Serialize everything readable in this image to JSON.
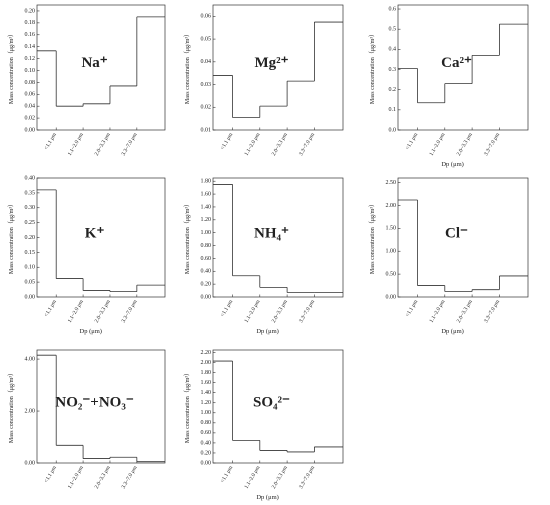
{
  "chart_data": [
    {
      "type": "step",
      "annotation": "Na⁺",
      "ylabel": "Mass concentration（μg/m³）",
      "categories": [
        "<1.1 μm",
        "1.1~2.0 μm",
        "2.0~3.3 μm",
        "3.3~7.0 μm",
        null
      ],
      "values": [
        0.133,
        0.04,
        0.044,
        0.074,
        0.19
      ],
      "color": "#333333",
      "ylim": [
        0,
        0.21
      ],
      "yticks": [
        {
          "value": 0,
          "label": "0.00"
        },
        0.02,
        0.04,
        0.06,
        0.08,
        {
          "value": 0.1,
          "label": "0.10"
        },
        0.12,
        0.14,
        0.16,
        0.18,
        {
          "value": 0.2,
          "label": "0.20"
        }
      ]
    },
    {
      "type": "step",
      "annotation": "Mg²⁺",
      "ylabel": "Mass concentration（μg/m³）",
      "categories": [
        "<1.1 μm",
        "1.1~2.0 μm",
        "2.0~3.3 μm",
        "3.3~7.0 μm",
        null
      ],
      "values": [
        0.034,
        0.0155,
        0.0205,
        0.0315,
        0.0575
      ],
      "color": "#333333",
      "ylim": [
        0.01,
        0.065
      ],
      "yticks": [
        0.01,
        0.02,
        0.03,
        0.04,
        0.05,
        0.06
      ]
    },
    {
      "type": "step",
      "annotation": "Ca²⁺",
      "ylabel": "Mass concentration（μg/m³）",
      "xlabel": "Dp (μm)",
      "categories": [
        "<1.1 μm",
        "1.1~2.0 μm",
        "2.0~3.3 μm",
        "3.3~7.0 μm",
        null
      ],
      "values": [
        0.305,
        0.135,
        0.23,
        0.37,
        0.525
      ],
      "color": "#333333",
      "ylim": [
        0,
        0.62
      ],
      "yticks": [
        {
          "value": 0,
          "label": "0.0"
        },
        0.1,
        0.2,
        0.3,
        0.4,
        0.5,
        0.6
      ]
    },
    {
      "type": "step",
      "annotation": "K⁺",
      "ylabel": "Mass concentration（μg/m³）",
      "xlabel": "Dp (μm)",
      "categories": [
        "<1.1 μm",
        "1.1~2.0 μm",
        "2.0~3.3 μm",
        "3.3~7.0 μm",
        null
      ],
      "values": [
        0.36,
        0.062,
        0.022,
        0.018,
        0.04
      ],
      "color": "#333333",
      "ylim": [
        0,
        0.4
      ],
      "yticks": [
        {
          "value": 0,
          "label": "0.00"
        },
        0.05,
        {
          "value": 0.1,
          "label": "0.10"
        },
        0.15,
        {
          "value": 0.2,
          "label": "0.20"
        },
        0.25,
        {
          "value": 0.3,
          "label": "0.30"
        },
        0.35,
        {
          "value": 0.4,
          "label": "0.40"
        }
      ]
    },
    {
      "type": "step",
      "annotation": "NH₄⁺",
      "ylabel": "Mass concentration（μg/m³）",
      "xlabel": "Dp (μm)",
      "categories": [
        "<1.1 μm",
        "1.1~2.0 μm",
        "2.0~3.3 μm",
        "3.3~7.0 μm",
        null
      ],
      "values": [
        1.75,
        0.33,
        0.15,
        0.07,
        0.07
      ],
      "color": "#333333",
      "ylim": [
        0,
        1.85
      ],
      "yticks": [
        {
          "value": 0,
          "label": "0.00"
        },
        {
          "value": 0.2,
          "label": "0.20"
        },
        {
          "value": 0.4,
          "label": "0.40"
        },
        {
          "value": 0.6,
          "label": "0.60"
        },
        {
          "value": 0.8,
          "label": "0.80"
        },
        {
          "value": 1,
          "label": "1.00"
        },
        {
          "value": 1.2,
          "label": "1.20"
        },
        {
          "value": 1.4,
          "label": "1.40"
        },
        {
          "value": 1.6,
          "label": "1.60"
        },
        {
          "value": 1.8,
          "label": "1.80"
        }
      ]
    },
    {
      "type": "step",
      "annotation": "Cl⁻",
      "ylabel": "Mass concentration（μg/m³）",
      "xlabel": "Dp (μm)",
      "categories": [
        "<1.1 μm",
        "1.1~2.0 μm",
        "2.0~3.3 μm",
        "3.3~7.0 μm",
        null
      ],
      "values": [
        2.12,
        0.25,
        0.12,
        0.16,
        0.46
      ],
      "color": "#333333",
      "ylim": [
        0,
        2.6
      ],
      "yticks": [
        {
          "value": 0,
          "label": "0.00"
        },
        {
          "value": 0.5,
          "label": "0.50"
        },
        {
          "value": 1,
          "label": "1.00"
        },
        {
          "value": 1.5,
          "label": "1.50"
        },
        {
          "value": 2,
          "label": "2.00"
        },
        {
          "value": 2.5,
          "label": "2.50"
        }
      ]
    },
    {
      "type": "step",
      "annotation": "NO₂⁻+NO₃⁻",
      "ylabel": "Mass concentration（μg/m³）",
      "categories": [
        "<1.1 μm",
        "1.1~2.0 μm",
        "2.0~3.3 μm",
        "3.3~7.0 μm",
        null
      ],
      "values": [
        4.15,
        0.68,
        0.17,
        0.22,
        0.05
      ],
      "color": "#333333",
      "ylim": [
        0,
        4.35
      ],
      "yticks": [
        {
          "value": 0,
          "label": "0.00"
        },
        {
          "value": 2,
          "label": "2.00"
        },
        {
          "value": 4,
          "label": "4.00"
        }
      ]
    },
    {
      "type": "step",
      "annotation": "SO₄²⁻",
      "ylabel": "Mass concentration（μg/m³）",
      "xlabel": "Dp (μm)",
      "categories": [
        "<1.1 μm",
        "1.1~2.0 μm",
        "2.0~3.3 μm",
        "3.3~7.0 μm",
        null
      ],
      "values": [
        2.03,
        0.45,
        0.25,
        0.22,
        0.32
      ],
      "color": "#333333",
      "ylim": [
        0,
        2.25
      ],
      "yticks": [
        {
          "value": 0,
          "label": "0.00"
        },
        {
          "value": 0.2,
          "label": "0.20"
        },
        {
          "value": 0.4,
          "label": "0.40"
        },
        {
          "value": 0.6,
          "label": "0.60"
        },
        {
          "value": 0.8,
          "label": "0.80"
        },
        {
          "value": 1,
          "label": "1.00"
        },
        {
          "value": 1.2,
          "label": "1.20"
        },
        {
          "value": 1.4,
          "label": "1.40"
        },
        {
          "value": 1.6,
          "label": "1.60"
        },
        {
          "value": 1.8,
          "label": "1.80"
        },
        {
          "value": 2,
          "label": "2.00"
        },
        {
          "value": 2.2,
          "label": "2.20"
        }
      ]
    }
  ]
}
